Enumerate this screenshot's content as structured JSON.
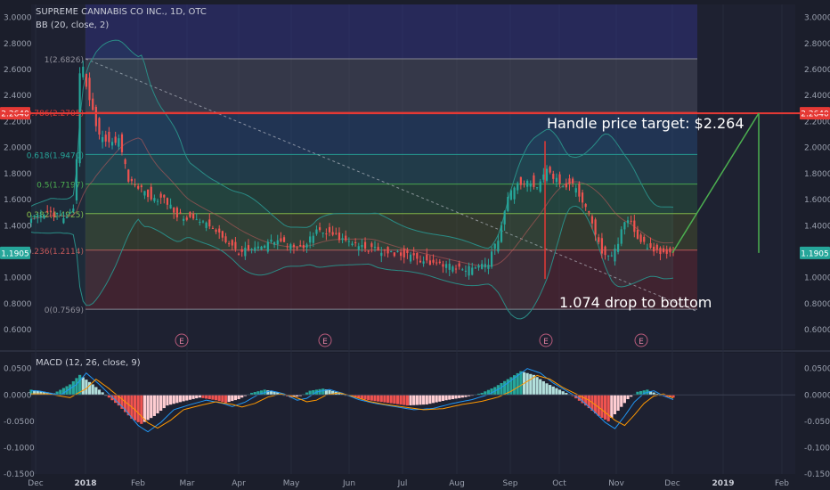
{
  "header": {
    "symbol_line": "SUPREME CANNABIS CO INC., 1D, OTC",
    "indicator_line": "BB (20, close, 2)",
    "macd_line": "MACD (12, 26, close, 9)"
  },
  "annotations": {
    "target": "Handle price target: $2.264",
    "drop": "1.074 drop to bottom"
  },
  "colors": {
    "background": "#1b1e2b",
    "up": "#26a69a",
    "down": "#ef5350",
    "target_line": "#e53935",
    "projection": "#4caf50",
    "badge": "#26a69a"
  },
  "price_badges": {
    "left_target": "2.2640",
    "right_target": "2.2640",
    "left_current": "1.1905",
    "right_current": "1.1905"
  },
  "chart_data": {
    "type": "candlestick",
    "x_tick_labels": [
      "Dec",
      "2018",
      "Feb",
      "Mar",
      "Apr",
      "May",
      "Jun",
      "Jul",
      "Aug",
      "Sep",
      "Oct",
      "Nov",
      "Dec",
      "2019",
      "Feb"
    ],
    "price_axis": {
      "ylim": [
        0.45,
        3.1
      ],
      "ticks": [
        "3.0000",
        "2.8000",
        "2.6000",
        "2.4000",
        "2.2000",
        "2.0000",
        "1.8000",
        "1.6000",
        "1.4000",
        "1.2000",
        "1.0000",
        "0.8000",
        "0.6000"
      ]
    },
    "macd_axis": {
      "ylim": [
        -0.15,
        0.08
      ],
      "ticks": [
        "0.0500",
        "0.0000",
        "-0.0500",
        "-0.1000",
        "-0.1500"
      ]
    },
    "fib_levels": [
      {
        "label": "1(2.6826)",
        "value": 2.6826
      },
      {
        "label": "0.786(2.2705)",
        "value": 2.2705
      },
      {
        "label": "0.618(1.9470)",
        "value": 1.947
      },
      {
        "label": "0.5(1.7197)",
        "value": 1.7197
      },
      {
        "label": "0.382(1.4925)",
        "value": 1.4925
      },
      {
        "label": "0.236(1.2114)",
        "value": 1.2114
      },
      {
        "label": "0(0.7569)",
        "value": 0.7569
      }
    ],
    "target_price": 2.264,
    "current_price": 1.1905,
    "earnings_markers": [
      "E",
      "E",
      "E",
      "E"
    ],
    "price_anchors": [
      [
        0,
        1.45
      ],
      [
        6,
        1.5
      ],
      [
        10,
        1.45
      ],
      [
        13,
        1.55
      ],
      [
        14,
        1.9
      ],
      [
        15,
        2.55
      ],
      [
        16,
        2.6
      ],
      [
        18,
        2.35
      ],
      [
        21,
        2.1
      ],
      [
        24,
        2.05
      ],
      [
        27,
        2.05
      ],
      [
        30,
        1.75
      ],
      [
        33,
        1.7
      ],
      [
        37,
        1.62
      ],
      [
        41,
        1.6
      ],
      [
        45,
        1.48
      ],
      [
        50,
        1.45
      ],
      [
        55,
        1.4
      ],
      [
        58,
        1.35
      ],
      [
        61,
        1.25
      ],
      [
        64,
        1.2
      ],
      [
        70,
        1.22
      ],
      [
        75,
        1.28
      ],
      [
        80,
        1.25
      ],
      [
        84,
        1.22
      ],
      [
        88,
        1.38
      ],
      [
        92,
        1.34
      ],
      [
        97,
        1.28
      ],
      [
        102,
        1.24
      ],
      [
        108,
        1.2
      ],
      [
        114,
        1.18
      ],
      [
        120,
        1.14
      ],
      [
        125,
        1.1
      ],
      [
        130,
        1.08
      ],
      [
        134,
        1.06
      ],
      [
        138,
        1.08
      ],
      [
        141,
        1.12
      ],
      [
        144,
        1.3
      ],
      [
        147,
        1.62
      ],
      [
        150,
        1.72
      ],
      [
        153,
        1.74
      ],
      [
        156,
        1.7
      ],
      [
        159,
        1.85
      ],
      [
        161,
        1.78
      ],
      [
        164,
        1.72
      ],
      [
        167,
        1.7
      ],
      [
        170,
        1.6
      ],
      [
        173,
        1.42
      ],
      [
        176,
        1.2
      ],
      [
        179,
        1.15
      ],
      [
        182,
        1.35
      ],
      [
        184,
        1.46
      ],
      [
        187,
        1.32
      ],
      [
        190,
        1.24
      ],
      [
        193,
        1.2
      ],
      [
        196,
        1.2
      ],
      [
        198,
        1.19
      ]
    ],
    "macd_anchors": [
      [
        0,
        0.01
      ],
      [
        7,
        0.003
      ],
      [
        12,
        0.02
      ],
      [
        15,
        0.038
      ],
      [
        19,
        0.02
      ],
      [
        23,
        0.0
      ],
      [
        27,
        -0.02
      ],
      [
        31,
        -0.045
      ],
      [
        34,
        -0.055
      ],
      [
        38,
        -0.04
      ],
      [
        42,
        -0.02
      ],
      [
        47,
        -0.012
      ],
      [
        52,
        -0.005
      ],
      [
        57,
        -0.01
      ],
      [
        60,
        -0.015
      ],
      [
        64,
        -0.008
      ],
      [
        68,
        0.004
      ],
      [
        72,
        0.01
      ],
      [
        76,
        0.005
      ],
      [
        80,
        -0.005
      ],
      [
        83,
        -0.002
      ],
      [
        86,
        0.008
      ],
      [
        90,
        0.012
      ],
      [
        94,
        0.006
      ],
      [
        99,
        -0.004
      ],
      [
        104,
        -0.01
      ],
      [
        110,
        -0.015
      ],
      [
        116,
        -0.02
      ],
      [
        122,
        -0.018
      ],
      [
        128,
        -0.01
      ],
      [
        134,
        -0.004
      ],
      [
        139,
        0.004
      ],
      [
        143,
        0.015
      ],
      [
        147,
        0.03
      ],
      [
        151,
        0.045
      ],
      [
        155,
        0.038
      ],
      [
        159,
        0.022
      ],
      [
        163,
        0.01
      ],
      [
        167,
        -0.002
      ],
      [
        171,
        -0.02
      ],
      [
        175,
        -0.04
      ],
      [
        178,
        -0.05
      ],
      [
        181,
        -0.03
      ],
      [
        184,
        -0.008
      ],
      [
        187,
        0.006
      ],
      [
        190,
        0.01
      ],
      [
        193,
        0.002
      ],
      [
        196,
        -0.004
      ],
      [
        198,
        -0.005
      ]
    ],
    "projection": {
      "line": [
        [
          1.1905,
          2.264
        ]
      ],
      "drop_range": [
        2.264,
        1.1905
      ]
    }
  }
}
